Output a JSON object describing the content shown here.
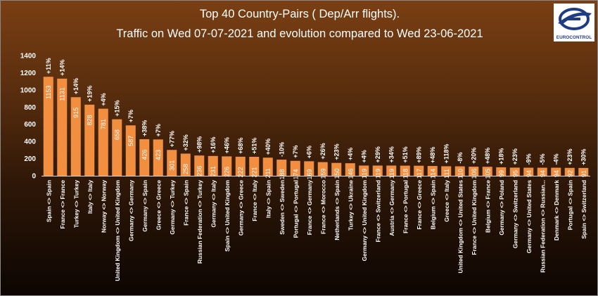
{
  "header": {
    "title_line1": "Top 40 Country-Pairs ( Dep/Arr flights).",
    "title_line2": "Traffic on Wed 07-07-2021 and evolution compared to Wed 23-06-2021"
  },
  "logo": {
    "text": "EUROCONTROL",
    "icon": "eurocontrol-logo"
  },
  "colors": {
    "bar": "#f28e40",
    "text": "#ffffff",
    "axis": "#d9d9d9"
  },
  "chart_data": {
    "type": "bar",
    "ylim": [
      0,
      1400
    ],
    "yticks": [
      0,
      200,
      400,
      600,
      800,
      1000,
      1200,
      1400
    ],
    "categories": [
      "Spain <> Spain",
      "France <> France",
      "Turkey <> Turkey",
      "Italy <> Italy",
      "Norway <> Norway",
      "United Kingdom <> United Kingdom",
      "Germany <> Germany",
      "Germany <> Spain",
      "Greece <> Greece",
      "Germany <> Turkey",
      "France <> Spain",
      "Russian Federation <> Turkey",
      "Germany <> Italy",
      "Spain <> United Kingdom",
      "Germany <> Greece",
      "France <> Italy",
      "Italy <> Spain",
      "Sweden <> Sweden",
      "Portugal <> Portugal",
      "France <> Germany",
      "France <> Morocco",
      "Netherlands <> Spain",
      "Turkey <> Ukraine",
      "Germany <> United Kingdom",
      "France <> Switzerland",
      "Austria <> Germany",
      "France <> Portugal",
      "France <> Greece",
      "Belgium <> Spain",
      "Greece <> Italy",
      "United Kingdom <> United States",
      "France <> United Kingdom",
      "Belgium <> France",
      "Germany <> Poland",
      "Germany <> Switzerland",
      "Germany <> United States",
      "Russian Federation <> Russian...",
      "Denmark <> Denmark",
      "Portugal <> Spain",
      "Spain <> Switzerland"
    ],
    "values": [
      1153,
      1131,
      915,
      828,
      781,
      658,
      587,
      426,
      423,
      301,
      258,
      236,
      231,
      226,
      222,
      221,
      211,
      188,
      174,
      169,
      159,
      150,
      146,
      119,
      119,
      119,
      118,
      117,
      114,
      111,
      110,
      106,
      105,
      99,
      95,
      94,
      94,
      94,
      92,
      91
    ],
    "evolution": [
      "+11%",
      "+14%",
      "+14%",
      "+19%",
      "+4%",
      "+15%",
      "+7%",
      "+38%",
      "+7%",
      "+77%",
      "+32%",
      "+98%",
      "+16%",
      "+46%",
      "+68%",
      "+51%",
      "+40%",
      "-10%",
      "+7%",
      "+6%",
      "+26%",
      "+23%",
      "+4%",
      "+4%",
      "+29%",
      "+34%",
      "+51%",
      "+89%",
      "+48%",
      "+118%",
      "-8%",
      "+20%",
      "+48%",
      "+18%",
      "+23%",
      "-9%",
      "-5%",
      "-4%",
      "+23%",
      "+30%"
    ]
  }
}
